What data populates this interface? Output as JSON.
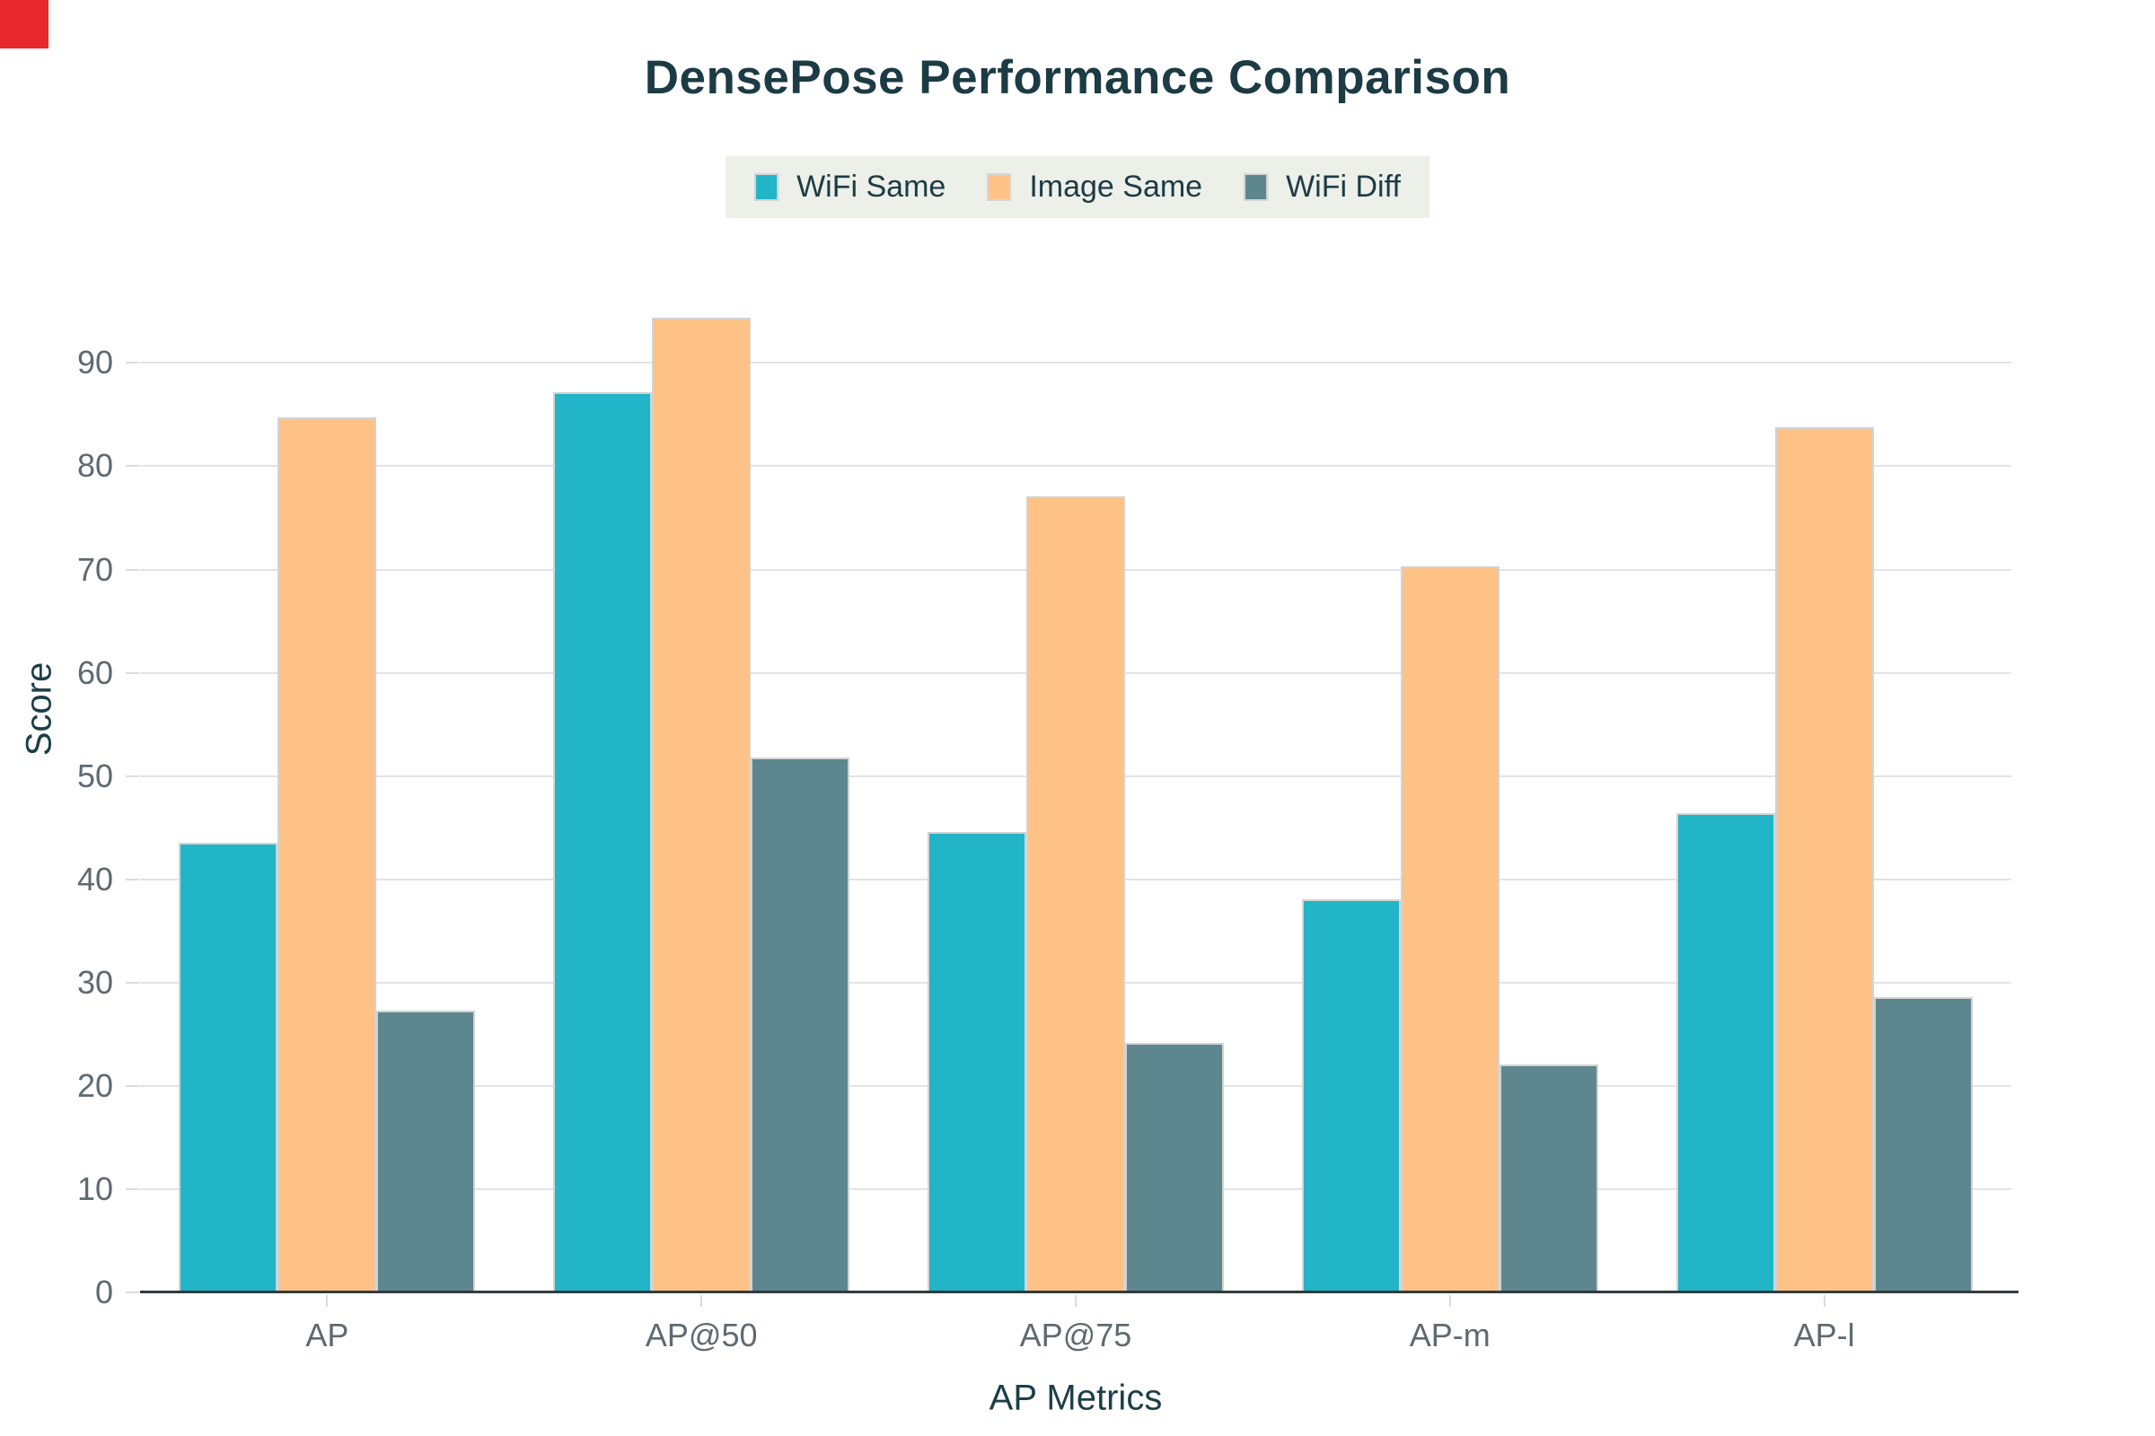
{
  "title": {
    "text": "DensePose Performance Comparison"
  },
  "chart_data": {
    "type": "bar",
    "title": "DensePose Performance Comparison",
    "categories": [
      "AP",
      "AP@50",
      "AP@75",
      "AP-m",
      "AP-l"
    ],
    "series": [
      {
        "name": "WiFi Same",
        "color": "#22b4c7",
        "values": [
          43.5,
          87.2,
          44.6,
          38.1,
          46.4
        ]
      },
      {
        "name": "Image Same",
        "color": "#fec287",
        "values": [
          84.7,
          94.4,
          77.1,
          70.3,
          83.8
        ]
      },
      {
        "name": "WiFi Diff",
        "color": "#5d868e",
        "values": [
          27.3,
          51.8,
          24.2,
          22.1,
          28.6
        ]
      }
    ],
    "xlabel": "AP Metrics",
    "ylabel": "Score",
    "ylim": [
      0,
      95.6
    ],
    "yticks": [
      0,
      10,
      20,
      30,
      40,
      50,
      60,
      70,
      80,
      90
    ],
    "grid": true,
    "legend_position": "top-center"
  },
  "colors": {
    "title_text": "#1c3b44",
    "axis_title_text": "#1c3e47",
    "tick_label_text": "#5e6a71",
    "gridline": "#e3e3e3",
    "tick_dash": "#dcdcdc",
    "axis_line": "#343b3e",
    "legend_background": "#edefe9",
    "legend_text": "#1c3b44",
    "bar_border": "#d3d3d3",
    "corner_marker": "#e8282d",
    "background": "#ffffff"
  }
}
